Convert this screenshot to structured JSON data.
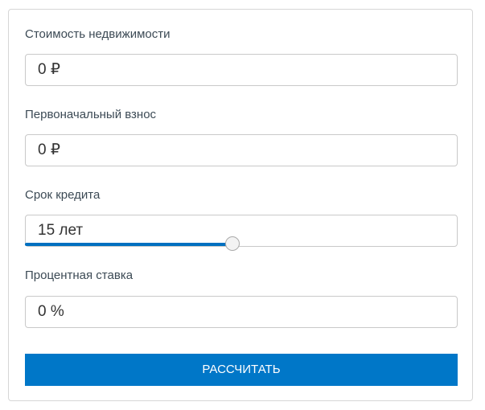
{
  "fields": [
    {
      "label": "Стоимость недвижимости",
      "value": "0 ₽"
    },
    {
      "label": "Первоначальный взнос",
      "value": "0 ₽"
    },
    {
      "label": "Срок кредита",
      "value": "15 лет"
    },
    {
      "label": "Процентная ставка",
      "value": "0 %"
    }
  ],
  "term_slider": {
    "value": 15,
    "fraction": 0.48,
    "color": "#0070c0"
  },
  "submit_label": "РАССЧИТАТЬ",
  "accent": "#0077c8"
}
